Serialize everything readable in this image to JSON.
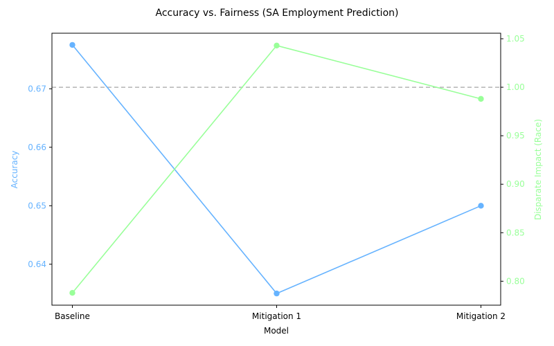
{
  "chart_data": {
    "type": "line",
    "title": "Accuracy vs. Fairness (SA Employment Prediction)",
    "xlabel": "Model",
    "categories": [
      "Baseline",
      "Mitigation 1",
      "Mitigation 2"
    ],
    "series": [
      {
        "name": "Accuracy",
        "axis": "left",
        "color": "#66b3ff",
        "values": [
          0.6775,
          0.635,
          0.65
        ]
      },
      {
        "name": "Disparate Impact (Race)",
        "axis": "right",
        "color": "#99ff99",
        "values": [
          0.788,
          1.043,
          0.988
        ]
      }
    ],
    "y_left": {
      "label": "Accuracy",
      "color": "#66b3ff",
      "range": [
        0.633,
        0.6795
      ],
      "ticks": [
        0.64,
        0.65,
        0.66,
        0.67
      ],
      "tick_labels": [
        "0.64",
        "0.65",
        "0.66",
        "0.67"
      ]
    },
    "y_right": {
      "label": "Disparate Impact (Race)",
      "color": "#99ff99",
      "range": [
        0.7753,
        1.0557
      ],
      "ticks": [
        0.8,
        0.85,
        0.9,
        0.95,
        1.0,
        1.05
      ],
      "tick_labels": [
        "0.80",
        "0.85",
        "0.90",
        "0.95",
        "1.00",
        "1.05"
      ]
    },
    "reference_line": {
      "axis": "right",
      "value": 1.0,
      "style": "dashed",
      "color": "#b3b3b3"
    },
    "grid": false
  }
}
